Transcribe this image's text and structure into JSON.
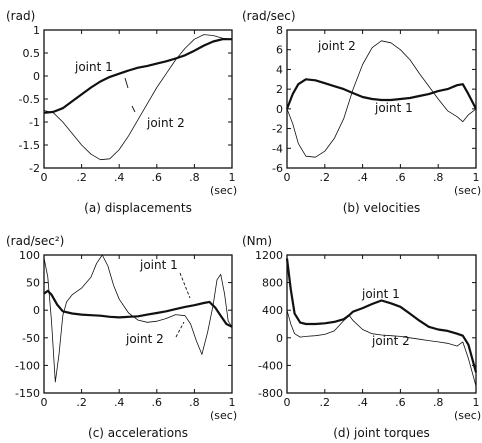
{
  "chart_data": [
    {
      "type": "line",
      "caption": "(a) displacements",
      "unit": "(rad)",
      "x_unit": "(sec)",
      "xlim": [
        0,
        1
      ],
      "ylim": [
        -2,
        1
      ],
      "x_ticks": [
        "0",
        ".2",
        ".4",
        ".6",
        ".8",
        "1"
      ],
      "y_ticks": [
        "1",
        "0.5",
        "0",
        "-0.5",
        "-1",
        "-1.5",
        "-2"
      ],
      "y_tick_values": [
        1,
        0.5,
        0,
        -0.5,
        -1,
        -1.5,
        -2
      ],
      "annotations": [
        "joint 1",
        "joint 2"
      ],
      "series": [
        {
          "name": "joint 1",
          "style": "thick",
          "x": [
            0,
            0.05,
            0.1,
            0.15,
            0.2,
            0.25,
            0.3,
            0.35,
            0.4,
            0.45,
            0.5,
            0.55,
            0.6,
            0.65,
            0.7,
            0.75,
            0.8,
            0.85,
            0.9,
            0.95,
            1.0
          ],
          "y": [
            -0.8,
            -0.78,
            -0.7,
            -0.55,
            -0.4,
            -0.25,
            -0.12,
            -0.02,
            0.05,
            0.12,
            0.18,
            0.22,
            0.27,
            0.32,
            0.38,
            0.45,
            0.55,
            0.66,
            0.75,
            0.8,
            0.8
          ]
        },
        {
          "name": "joint 2",
          "style": "thin",
          "x": [
            0,
            0.05,
            0.1,
            0.15,
            0.2,
            0.25,
            0.3,
            0.35,
            0.4,
            0.45,
            0.5,
            0.55,
            0.6,
            0.65,
            0.7,
            0.75,
            0.8,
            0.85,
            0.9,
            0.95,
            1.0
          ],
          "y": [
            -0.75,
            -0.8,
            -1.0,
            -1.25,
            -1.5,
            -1.7,
            -1.82,
            -1.8,
            -1.6,
            -1.3,
            -0.95,
            -0.6,
            -0.25,
            0.05,
            0.35,
            0.6,
            0.8,
            0.9,
            0.88,
            0.82,
            0.8
          ]
        }
      ]
    },
    {
      "type": "line",
      "caption": "(b) velocities",
      "unit": "(rad/sec)",
      "x_unit": "(sec)",
      "xlim": [
        0,
        1
      ],
      "ylim": [
        -6,
        8
      ],
      "x_ticks": [
        "0",
        ".2",
        ".4",
        ".6",
        ".8",
        "1"
      ],
      "y_ticks": [
        "8",
        "6",
        "4",
        "2",
        "0",
        "-2",
        "-4",
        "-6"
      ],
      "y_tick_values": [
        8,
        6,
        4,
        2,
        0,
        -2,
        -4,
        -6
      ],
      "annotations": [
        "joint 2",
        "joint 1"
      ],
      "series": [
        {
          "name": "joint 1",
          "style": "thick",
          "x": [
            0,
            0.03,
            0.06,
            0.1,
            0.15,
            0.2,
            0.25,
            0.3,
            0.35,
            0.4,
            0.45,
            0.5,
            0.55,
            0.6,
            0.65,
            0.7,
            0.75,
            0.8,
            0.85,
            0.9,
            0.93,
            0.96,
            1.0
          ],
          "y": [
            0,
            1.5,
            2.5,
            3.0,
            2.9,
            2.6,
            2.3,
            2.0,
            1.6,
            1.2,
            1.0,
            0.9,
            0.9,
            1.0,
            1.1,
            1.3,
            1.5,
            1.8,
            2.0,
            2.4,
            2.5,
            1.5,
            0
          ]
        },
        {
          "name": "joint 2",
          "style": "thin",
          "x": [
            0,
            0.03,
            0.06,
            0.1,
            0.15,
            0.2,
            0.25,
            0.3,
            0.35,
            0.4,
            0.45,
            0.5,
            0.55,
            0.6,
            0.65,
            0.7,
            0.75,
            0.8,
            0.85,
            0.9,
            0.93,
            0.96,
            1.0
          ],
          "y": [
            0,
            -1.5,
            -3.5,
            -4.8,
            -4.9,
            -4.3,
            -3.0,
            -1.0,
            2.0,
            4.5,
            6.2,
            6.9,
            6.7,
            6.0,
            5.0,
            3.6,
            2.3,
            1.0,
            -0.2,
            -0.8,
            -1.3,
            -0.6,
            0
          ]
        }
      ]
    },
    {
      "type": "line",
      "caption": "(c) accelerations",
      "unit": "(rad/sec²)",
      "x_unit": "(sec)",
      "xlim": [
        0,
        1
      ],
      "ylim": [
        -150,
        100
      ],
      "x_ticks": [
        "0",
        ".2",
        ".4",
        ".6",
        ".8",
        "1"
      ],
      "y_ticks": [
        "100",
        "50",
        "0",
        "-50",
        "-100",
        "-150"
      ],
      "y_tick_values": [
        100,
        50,
        0,
        -50,
        -100,
        -150
      ],
      "annotations": [
        "joint 1",
        "joint 2"
      ],
      "series": [
        {
          "name": "joint 1",
          "style": "thick",
          "x": [
            0,
            0.02,
            0.04,
            0.07,
            0.1,
            0.15,
            0.2,
            0.25,
            0.3,
            0.35,
            0.4,
            0.45,
            0.5,
            0.55,
            0.6,
            0.65,
            0.7,
            0.75,
            0.8,
            0.85,
            0.88,
            0.91,
            0.94,
            0.97,
            1.0
          ],
          "y": [
            30,
            35,
            28,
            10,
            -2,
            -6,
            -8,
            -9,
            -10,
            -12,
            -13,
            -12,
            -11,
            -8,
            -5,
            -2,
            2,
            6,
            9,
            13,
            15,
            5,
            -10,
            -25,
            -30
          ]
        },
        {
          "name": "joint 2",
          "style": "thin",
          "x": [
            0,
            0.02,
            0.04,
            0.06,
            0.08,
            0.1,
            0.12,
            0.15,
            0.2,
            0.25,
            0.28,
            0.31,
            0.34,
            0.37,
            0.4,
            0.45,
            0.5,
            0.55,
            0.6,
            0.65,
            0.7,
            0.75,
            0.78,
            0.81,
            0.84,
            0.87,
            0.9,
            0.92,
            0.94,
            0.96,
            0.98,
            1.0
          ],
          "y": [
            95,
            60,
            -20,
            -130,
            -80,
            -10,
            15,
            28,
            40,
            60,
            85,
            100,
            80,
            45,
            20,
            -5,
            -18,
            -22,
            -20,
            -15,
            -8,
            -10,
            -25,
            -55,
            -80,
            -40,
            10,
            55,
            65,
            30,
            -20,
            -30
          ]
        }
      ]
    },
    {
      "type": "line",
      "caption": "(d) joint torques",
      "unit": "(Nm)",
      "x_unit": "(sec)",
      "xlim": [
        0,
        1
      ],
      "ylim": [
        -800,
        1200
      ],
      "x_ticks": [
        "0",
        ".2",
        ".4",
        ".6",
        ".8",
        "1"
      ],
      "y_ticks": [
        "1200",
        "800",
        "400",
        "0",
        "-400",
        "-800"
      ],
      "y_tick_values": [
        1200,
        800,
        400,
        0,
        -400,
        -800
      ],
      "annotations": [
        "joint 1",
        "joint 2"
      ],
      "series": [
        {
          "name": "joint 1",
          "style": "thick",
          "x": [
            0,
            0.02,
            0.04,
            0.07,
            0.1,
            0.15,
            0.2,
            0.25,
            0.3,
            0.33,
            0.35,
            0.4,
            0.45,
            0.5,
            0.55,
            0.6,
            0.65,
            0.7,
            0.75,
            0.8,
            0.85,
            0.9,
            0.93,
            0.96,
            1.0
          ],
          "y": [
            1150,
            700,
            350,
            220,
            200,
            200,
            210,
            230,
            270,
            330,
            380,
            430,
            490,
            540,
            500,
            450,
            350,
            250,
            160,
            120,
            100,
            60,
            30,
            -100,
            -500
          ]
        },
        {
          "name": "joint 2",
          "style": "thin",
          "x": [
            0,
            0.02,
            0.04,
            0.07,
            0.1,
            0.15,
            0.2,
            0.25,
            0.3,
            0.33,
            0.35,
            0.4,
            0.45,
            0.5,
            0.55,
            0.6,
            0.65,
            0.7,
            0.75,
            0.8,
            0.85,
            0.9,
            0.93,
            0.96,
            1.0
          ],
          "y": [
            400,
            200,
            60,
            10,
            20,
            30,
            50,
            100,
            250,
            320,
            250,
            120,
            60,
            40,
            30,
            20,
            0,
            -20,
            -40,
            -60,
            -80,
            -120,
            -60,
            -300,
            -700
          ]
        }
      ]
    }
  ]
}
